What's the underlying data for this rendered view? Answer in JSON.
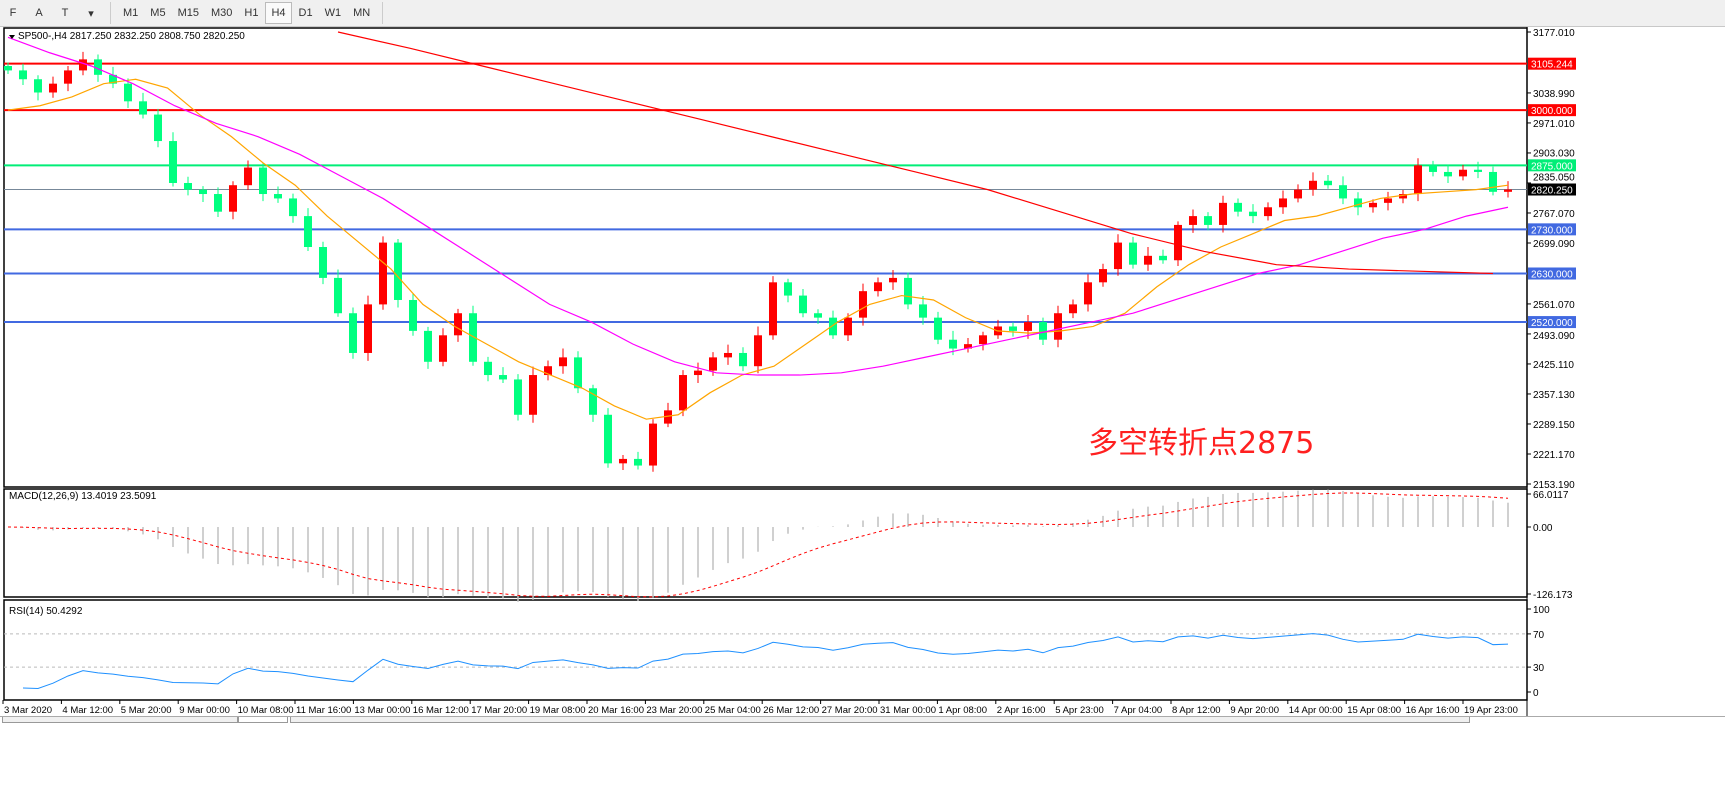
{
  "toolbar": {
    "tools": [
      {
        "icon": "grid-f-icon",
        "label": "F"
      },
      {
        "icon": "text-icon",
        "label": "A"
      },
      {
        "icon": "text-label-icon",
        "label": "T"
      },
      {
        "icon": "arrows-icon",
        "label": "▾"
      }
    ],
    "timeframes": [
      "M1",
      "M5",
      "M15",
      "M30",
      "H1",
      "H4",
      "D1",
      "W1",
      "MN"
    ],
    "active_timeframe": "H4"
  },
  "chart": {
    "header": "SP500-,H4  2817.250 2832.250 2808.750 2820.250",
    "annotation": "多空转折点2875",
    "macd_label": "MACD(12,26,9) 13.4019 23.5091",
    "rsi_label": "RSI(14) 50.4292"
  },
  "colors": {
    "up": "#ff0000",
    "down": "#00ff80",
    "ma_fast": "#ffa500",
    "ma_mid": "#ff00ff",
    "ma_slow": "#ff0000",
    "resistance": "#ff0000",
    "pivot": "#00ee77",
    "support": "#4169e1",
    "macd_hist": "#c0c0c0",
    "macd_signal": "#ff0000",
    "rsi": "#1e90ff"
  },
  "chart_data": {
    "type": "candlestick",
    "symbol": "SP500-",
    "timeframe": "H4",
    "last": {
      "open": 2817.25,
      "high": 2832.25,
      "low": 2808.75,
      "close": 2820.25
    },
    "price_ticks": [
      "3177.010",
      "3038.990",
      "2971.010",
      "2903.030",
      "2835.050",
      "2767.070",
      "2699.090",
      "2561.070",
      "2493.090",
      "2425.110",
      "2357.130",
      "2289.150",
      "2221.170",
      "2153.190"
    ],
    "ylim": [
      2153.19,
      3177.01
    ],
    "levels": [
      {
        "price": 3105.244,
        "label": "3105.244",
        "kind": "resistance"
      },
      {
        "price": 3000.0,
        "label": "3000.000",
        "kind": "resistance"
      },
      {
        "price": 2875.0,
        "label": "2875.000",
        "kind": "pivot"
      },
      {
        "price": 2820.25,
        "label": "2820.250",
        "kind": "current"
      },
      {
        "price": 2730.0,
        "label": "2730.000",
        "kind": "support"
      },
      {
        "price": 2630.0,
        "label": "2630.000",
        "kind": "support"
      },
      {
        "price": 2520.0,
        "label": "2520.000",
        "kind": "support"
      }
    ],
    "time_labels": [
      "3 Mar 2020",
      "4 Mar 12:00",
      "5 Mar 20:00",
      "9 Mar 00:00",
      "10 Mar 08:00",
      "11 Mar 16:00",
      "13 Mar 00:00",
      "16 Mar 12:00",
      "17 Mar 20:00",
      "19 Mar 08:00",
      "20 Mar 16:00",
      "23 Mar 20:00",
      "25 Mar 04:00",
      "26 Mar 12:00",
      "27 Mar 20:00",
      "31 Mar 00:00",
      "1 Apr 08:00",
      "2 Apr 16:00",
      "5 Apr 23:00",
      "7 Apr 04:00",
      "8 Apr 12:00",
      "9 Apr 20:00",
      "14 Apr 00:00",
      "15 Apr 08:00",
      "16 Apr 16:00",
      "19 Apr 23:00"
    ],
    "closes": [
      3090,
      3070,
      3040,
      3060,
      3090,
      3115,
      3080,
      3060,
      3020,
      2990,
      2930,
      2835,
      2820,
      2810,
      2770,
      2830,
      2870,
      2810,
      2800,
      2760,
      2690,
      2620,
      2540,
      2450,
      2560,
      2700,
      2570,
      2500,
      2430,
      2490,
      2540,
      2430,
      2400,
      2390,
      2310,
      2400,
      2420,
      2440,
      2370,
      2310,
      2200,
      2210,
      2195,
      2290,
      2320,
      2400,
      2410,
      2440,
      2450,
      2420,
      2490,
      2610,
      2580,
      2540,
      2530,
      2490,
      2530,
      2590,
      2610,
      2620,
      2560,
      2530,
      2480,
      2460,
      2470,
      2490,
      2510,
      2500,
      2520,
      2480,
      2540,
      2560,
      2610,
      2640,
      2700,
      2650,
      2670,
      2660,
      2740,
      2760,
      2740,
      2790,
      2770,
      2760,
      2780,
      2800,
      2820,
      2840,
      2830,
      2800,
      2780,
      2790,
      2800,
      2810,
      2875,
      2860,
      2850,
      2865,
      2860,
      2815,
      2820.25
    ],
    "ma_fast": [
      3000,
      3010,
      3030,
      3060,
      3070,
      3050,
      2990,
      2940,
      2880,
      2830,
      2760,
      2700,
      2640,
      2560,
      2510,
      2470,
      2430,
      2400,
      2370,
      2330,
      2300,
      2310,
      2360,
      2400,
      2420,
      2470,
      2520,
      2560,
      2580,
      2570,
      2530,
      2500,
      2495,
      2500,
      2510,
      2540,
      2600,
      2650,
      2690,
      2720,
      2750,
      2760,
      2780,
      2800,
      2810,
      2815,
      2820,
      2830
    ],
    "ma_mid": [
      3165,
      3130,
      3100,
      3060,
      3010,
      2970,
      2940,
      2900,
      2850,
      2800,
      2740,
      2680,
      2620,
      2560,
      2520,
      2470,
      2430,
      2405,
      2400,
      2400,
      2405,
      2420,
      2440,
      2460,
      2480,
      2500,
      2520,
      2540,
      2570,
      2600,
      2630,
      2650,
      2680,
      2710,
      2730,
      2760,
      2780
    ],
    "ma_slow": [
      3177,
      3140,
      3100,
      3060,
      3020,
      2980,
      2940,
      2900,
      2860,
      2820,
      2770,
      2720,
      2680,
      2650,
      2640,
      2635,
      2630
    ],
    "macd_ticks": [
      "66.0117",
      "0.00",
      "-126.173"
    ],
    "rsi_ticks": [
      "100",
      "70",
      "30",
      "0"
    ]
  }
}
